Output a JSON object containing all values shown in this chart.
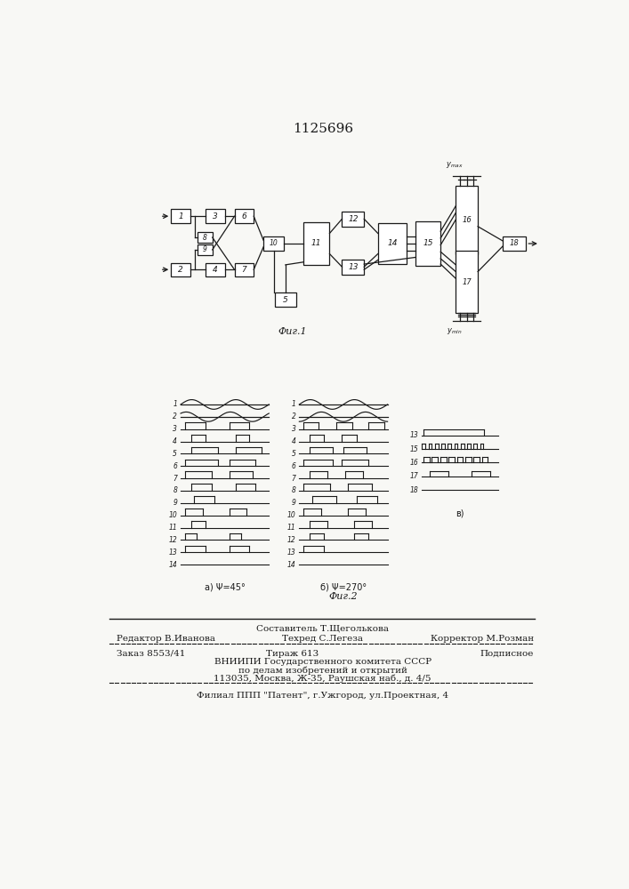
{
  "title": "1125696",
  "bg_color": "#f8f8f5",
  "fig1_caption": "Фиг.1",
  "fig2_caption": "Фиг.2",
  "subfig_a_label": "а) Ψ=45°",
  "subfig_b_label": "б) Ψ=270°",
  "subfig_c_label": "в)",
  "editor_line1": "Составитель Т.Щеголькова",
  "editor_line2": "Редактор В.Иванова",
  "techred_line": "Техред С.Легеза",
  "corrector_line": "Корректор М.Розман",
  "order_line": "Заказ 8553/41",
  "tirage_line": "Тираж 613",
  "podpisnoe_line": "Подписное",
  "vniiipi_line": "ВНИИПИ Государственного комитета СССР",
  "po_delam_line": "по делам изобретений и открытий",
  "address_line": "113035, Москва, Ж-35, Раушская наб., д. 4/5",
  "filial_line": "Филиал ППП \"Патент\", г.Ужгород, ул.Проектная, 4"
}
